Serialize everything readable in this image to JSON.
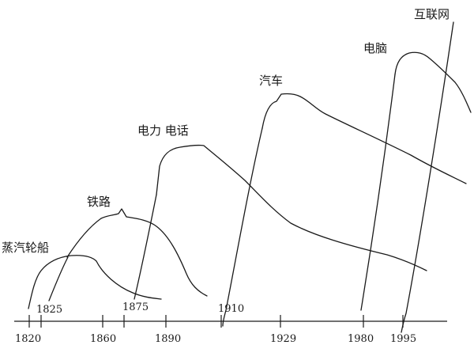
{
  "waves": [
    {
      "label": "蒸汽轮船",
      "start_year": "1825"
    },
    {
      "label": "铁路",
      "start_year": "1875"
    },
    {
      "label": "电力 电话",
      "start_year": "1910"
    },
    {
      "label": "汽车",
      "start_year": ""
    },
    {
      "label": "电脑",
      "start_year": ""
    },
    {
      "label": "互联网",
      "start_year": ""
    }
  ],
  "axis_years": [
    "1820",
    "1860",
    "1890",
    "1929",
    "1980",
    "1995"
  ]
}
